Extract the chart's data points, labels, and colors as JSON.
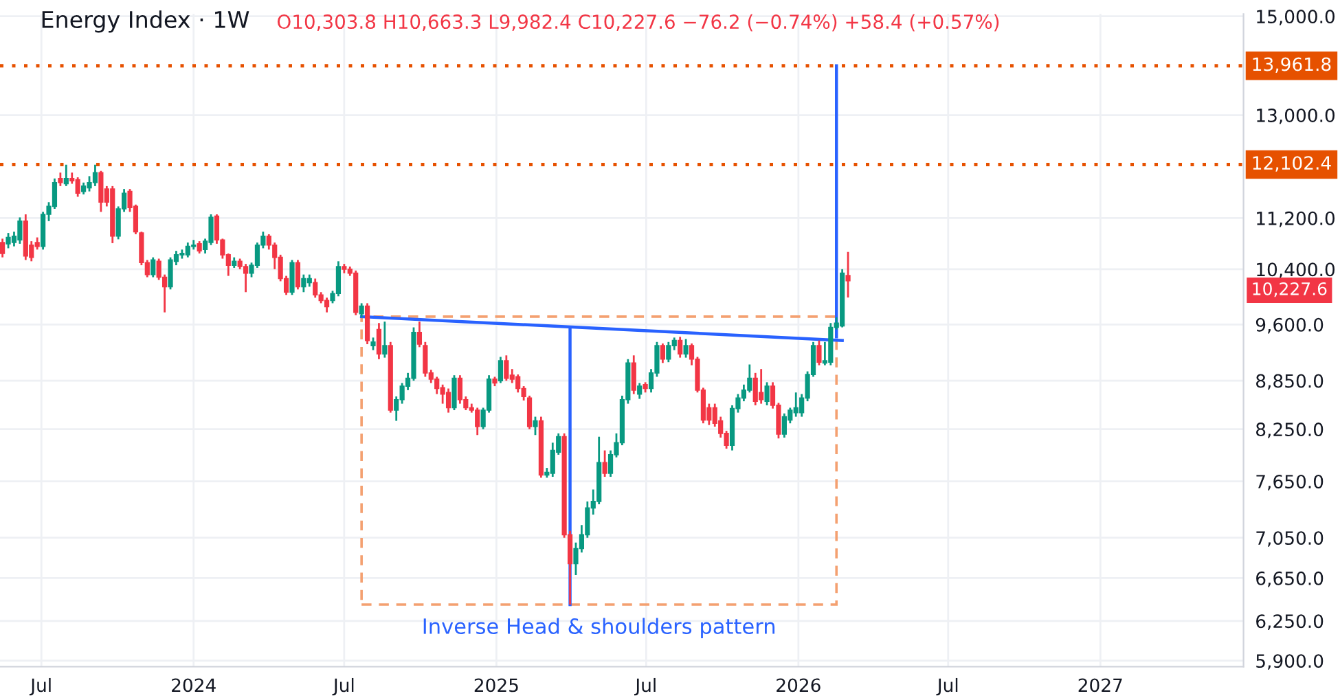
{
  "chart_data": {
    "type": "candlestick",
    "title": "Energy Index · 1W",
    "subtitle": "O10,303.8 H10,663.3 L9,982.4 C10,227.6 −76.2 (−0.74%) +58.4 (+0.57%)",
    "log": true,
    "grid": true,
    "xlim": [
      "2023-05-12",
      "2027-06-23"
    ],
    "xticks": [
      {
        "value": "2023-07-01",
        "label": "Jul"
      },
      {
        "value": "2024-01-01",
        "label": "2024"
      },
      {
        "value": "2024-07-01",
        "label": "Jul"
      },
      {
        "value": "2025-01-01",
        "label": "2025"
      },
      {
        "value": "2025-07-01",
        "label": "Jul"
      },
      {
        "value": "2026-01-01",
        "label": "2026"
      },
      {
        "value": "2026-07-01",
        "label": "Jul"
      },
      {
        "value": "2027-01-01",
        "label": "2027"
      }
    ],
    "ylim": [
      5850,
      15050
    ],
    "yticks": [
      {
        "value": 5900,
        "label": "5,900.0"
      },
      {
        "value": 6250,
        "label": "6,250.0"
      },
      {
        "value": 6650,
        "label": "6,650.0"
      },
      {
        "value": 7050,
        "label": "7,050.0"
      },
      {
        "value": 7650,
        "label": "7,650.0"
      },
      {
        "value": 8250,
        "label": "8,250.0"
      },
      {
        "value": 8850,
        "label": "8,850.0"
      },
      {
        "value": 9600,
        "label": "9,600.0"
      },
      {
        "value": 10400,
        "label": "10,400.0"
      },
      {
        "value": 11200,
        "label": "11,200.0"
      },
      {
        "value": 13000,
        "label": "13,000.0"
      },
      {
        "value": 15000,
        "label": "15,000.0"
      }
    ],
    "ref_lines": [
      {
        "axis": "y",
        "value": 13961.8,
        "label": "13,961.8",
        "color": "#e65100",
        "line_style": "dotted"
      },
      {
        "axis": "y",
        "value": 12102.4,
        "label": "12,102.4",
        "color": "#e65100",
        "line_style": "dotted"
      }
    ],
    "annotations": [
      "10,227.6",
      "Inverse Head & shoulders pattern"
    ],
    "series": [
      {
        "x": [
          "2023-05-15",
          "2023-05-22",
          "2023-05-29",
          "2023-06-05",
          "2023-06-12",
          "2023-06-19",
          "2023-06-26",
          "2023-07-03",
          "2023-07-10",
          "2023-07-17",
          "2023-07-24",
          "2023-07-31",
          "2023-08-07",
          "2023-08-14",
          "2023-08-21",
          "2023-08-28",
          "2023-09-04",
          "2023-09-11",
          "2023-09-18",
          "2023-09-25",
          "2023-10-02",
          "2023-10-09",
          "2023-10-16",
          "2023-10-23",
          "2023-10-30",
          "2023-11-06",
          "2023-11-13",
          "2023-11-20",
          "2023-11-27",
          "2023-12-04",
          "2023-12-11",
          "2023-12-18",
          "2023-12-25",
          "2024-01-01",
          "2024-01-08",
          "2024-01-15",
          "2024-01-22",
          "2024-01-29",
          "2024-02-05",
          "2024-02-12",
          "2024-02-19",
          "2024-02-26",
          "2024-03-04",
          "2024-03-11",
          "2024-03-18",
          "2024-03-25",
          "2024-04-01",
          "2024-04-08",
          "2024-04-15",
          "2024-04-22",
          "2024-04-29",
          "2024-05-06",
          "2024-05-13",
          "2024-05-20",
          "2024-05-27",
          "2024-06-03",
          "2024-06-10",
          "2024-06-17",
          "2024-06-24",
          "2024-07-01",
          "2024-07-08",
          "2024-07-15",
          "2024-07-22",
          "2024-07-29",
          "2024-08-05",
          "2024-08-12",
          "2024-08-19",
          "2024-08-26",
          "2024-09-02",
          "2024-09-09",
          "2024-09-16",
          "2024-09-23",
          "2024-09-30",
          "2024-10-07",
          "2024-10-14",
          "2024-10-21",
          "2024-10-28",
          "2024-11-04",
          "2024-11-11",
          "2024-11-18",
          "2024-11-25",
          "2024-12-02",
          "2024-12-09",
          "2024-12-16",
          "2024-12-23",
          "2024-12-30",
          "2025-01-06",
          "2025-01-13",
          "2025-01-20",
          "2025-01-27",
          "2025-02-03",
          "2025-02-10",
          "2025-02-17",
          "2025-02-24",
          "2025-03-03",
          "2025-03-10",
          "2025-03-17",
          "2025-03-24",
          "2025-03-31",
          "2025-04-07",
          "2025-04-14",
          "2025-04-21",
          "2025-04-28",
          "2025-05-05",
          "2025-05-12",
          "2025-05-19",
          "2025-05-26",
          "2025-06-02",
          "2025-06-09",
          "2025-06-16",
          "2025-06-23",
          "2025-06-30",
          "2025-07-07",
          "2025-07-14",
          "2025-07-21",
          "2025-07-28",
          "2025-08-04",
          "2025-08-11",
          "2025-08-18",
          "2025-08-25",
          "2025-09-01",
          "2025-09-08",
          "2025-09-15",
          "2025-09-22",
          "2025-09-29",
          "2025-10-06",
          "2025-10-13",
          "2025-10-20",
          "2025-10-27",
          "2025-11-03",
          "2025-11-10",
          "2025-11-17",
          "2025-11-24",
          "2025-12-01",
          "2025-12-08",
          "2025-12-15",
          "2025-12-22",
          "2025-12-29",
          "2026-01-05",
          "2026-01-12",
          "2026-01-19",
          "2026-01-26",
          "2026-02-02",
          "2026-02-09",
          "2026-02-16",
          "2026-02-23",
          "2026-03-02"
        ],
        "ohlc": [
          [
            10810,
            10870,
            10580,
            10640
          ],
          [
            10790,
            10960,
            10720,
            10890
          ],
          [
            10810,
            10980,
            10750,
            10910
          ],
          [
            10850,
            11210,
            10790,
            11150
          ],
          [
            11150,
            11260,
            10540,
            10600
          ],
          [
            10770,
            10830,
            10520,
            10580
          ],
          [
            10810,
            10890,
            10700,
            10750
          ],
          [
            10750,
            11300,
            10700,
            11260
          ],
          [
            11260,
            11460,
            11150,
            11390
          ],
          [
            11390,
            11860,
            11350,
            11790
          ],
          [
            11860,
            11960,
            11730,
            11790
          ],
          [
            11770,
            12100,
            11730,
            11860
          ],
          [
            11860,
            11960,
            11770,
            11820
          ],
          [
            11840,
            11880,
            11550,
            11610
          ],
          [
            11640,
            11790,
            11590,
            11730
          ],
          [
            11700,
            11900,
            11640,
            11790
          ],
          [
            11790,
            12100,
            11730,
            11960
          ],
          [
            11960,
            11990,
            11300,
            11460
          ],
          [
            11680,
            11730,
            11390,
            11460
          ],
          [
            11680,
            11730,
            10800,
            10910
          ],
          [
            10910,
            11390,
            10860,
            11350
          ],
          [
            11350,
            11680,
            11300,
            11610
          ],
          [
            11640,
            11680,
            11300,
            11370
          ],
          [
            11390,
            11420,
            10940,
            10980
          ],
          [
            10960,
            10980,
            10460,
            10500
          ],
          [
            10500,
            10540,
            10280,
            10320
          ],
          [
            10320,
            10580,
            10280,
            10540
          ],
          [
            10520,
            10560,
            10240,
            10280
          ],
          [
            10280,
            10320,
            9770,
            10140
          ],
          [
            10140,
            10580,
            10100,
            10540
          ],
          [
            10520,
            10680,
            10460,
            10620
          ],
          [
            10620,
            10700,
            10560,
            10640
          ],
          [
            10620,
            10810,
            10580,
            10750
          ],
          [
            10750,
            10850,
            10700,
            10770
          ],
          [
            10790,
            10830,
            10640,
            10680
          ],
          [
            10700,
            10870,
            10640,
            10830
          ],
          [
            10810,
            11260,
            10770,
            11210
          ],
          [
            11230,
            11260,
            10790,
            10850
          ],
          [
            10850,
            10870,
            10560,
            10620
          ],
          [
            10620,
            10640,
            10300,
            10460
          ],
          [
            10460,
            10580,
            10420,
            10520
          ],
          [
            10520,
            10560,
            10400,
            10440
          ],
          [
            10440,
            10480,
            10060,
            10340
          ],
          [
            10340,
            10500,
            10280,
            10460
          ],
          [
            10460,
            10810,
            10420,
            10770
          ],
          [
            10770,
            10980,
            10720,
            10910
          ],
          [
            10910,
            10940,
            10700,
            10770
          ],
          [
            10770,
            10810,
            10400,
            10580
          ],
          [
            10580,
            10620,
            10220,
            10260
          ],
          [
            10260,
            10300,
            10020,
            10060
          ],
          [
            10060,
            10540,
            10020,
            10500
          ],
          [
            10500,
            10540,
            10100,
            10140
          ],
          [
            10140,
            10320,
            10060,
            10260
          ],
          [
            10200,
            10320,
            10140,
            10260
          ],
          [
            10200,
            10260,
            9980,
            10020
          ],
          [
            10020,
            10060,
            9900,
            9940
          ],
          [
            9940,
            9980,
            9770,
            9850
          ],
          [
            9940,
            10080,
            9900,
            10040
          ],
          [
            10040,
            10520,
            10000,
            10440
          ],
          [
            10440,
            10480,
            10340,
            10400
          ],
          [
            10400,
            10440,
            10300,
            10340
          ],
          [
            10340,
            10380,
            9730,
            9770
          ],
          [
            9750,
            9900,
            9700,
            9860
          ],
          [
            9860,
            9900,
            9330,
            9380
          ],
          [
            9310,
            9420,
            9250,
            9360
          ],
          [
            9530,
            9620,
            9130,
            9200
          ],
          [
            9200,
            9640,
            9150,
            9310
          ],
          [
            9310,
            9360,
            8450,
            8480
          ],
          [
            8480,
            8650,
            8350,
            8610
          ],
          [
            8610,
            8820,
            8560,
            8780
          ],
          [
            8780,
            8950,
            8730,
            8880
          ],
          [
            8880,
            9560,
            8850,
            9490
          ],
          [
            9490,
            9640,
            9290,
            9330
          ],
          [
            9310,
            9360,
            8900,
            8950
          ],
          [
            8950,
            8990,
            8820,
            8870
          ],
          [
            8870,
            8900,
            8680,
            8750
          ],
          [
            8760,
            8800,
            8560,
            8680
          ],
          [
            8700,
            8750,
            8450,
            8510
          ],
          [
            8510,
            8920,
            8480,
            8880
          ],
          [
            8880,
            8920,
            8560,
            8610
          ],
          [
            8610,
            8650,
            8480,
            8510
          ],
          [
            8510,
            8560,
            8450,
            8480
          ],
          [
            8480,
            8510,
            8180,
            8280
          ],
          [
            8280,
            8510,
            8250,
            8480
          ],
          [
            8480,
            8920,
            8450,
            8870
          ],
          [
            8870,
            8900,
            8780,
            8820
          ],
          [
            8850,
            9160,
            8820,
            9110
          ],
          [
            9110,
            9180,
            8850,
            8880
          ],
          [
            8920,
            9000,
            8820,
            8870
          ],
          [
            8900,
            8930,
            8700,
            8750
          ],
          [
            8750,
            8780,
            8600,
            8650
          ],
          [
            8630,
            8660,
            8250,
            8280
          ],
          [
            8280,
            8400,
            8180,
            8350
          ],
          [
            8350,
            8400,
            7690,
            7720
          ],
          [
            7720,
            7800,
            7690,
            7750
          ],
          [
            7740,
            8090,
            7700,
            8000
          ],
          [
            7980,
            8200,
            7950,
            8160
          ],
          [
            8160,
            8200,
            7050,
            7080
          ],
          [
            7080,
            7120,
            6400,
            6790
          ],
          [
            6790,
            7000,
            6680,
            6940
          ],
          [
            6940,
            7180,
            6900,
            7080
          ],
          [
            7080,
            7430,
            7050,
            7360
          ],
          [
            7360,
            7560,
            7290,
            7430
          ],
          [
            7430,
            8160,
            7400,
            7860
          ],
          [
            7860,
            8000,
            7700,
            7740
          ],
          [
            7740,
            8000,
            7700,
            7950
          ],
          [
            7950,
            8200,
            7920,
            8090
          ],
          [
            8090,
            8660,
            8060,
            8610
          ],
          [
            8610,
            9130,
            8560,
            9080
          ],
          [
            9080,
            9180,
            8680,
            8730
          ],
          [
            8680,
            8820,
            8620,
            8780
          ],
          [
            8800,
            8830,
            8700,
            8750
          ],
          [
            8750,
            9000,
            8700,
            8950
          ],
          [
            8950,
            9360,
            8900,
            9310
          ],
          [
            9310,
            9340,
            9080,
            9130
          ],
          [
            9130,
            9360,
            9090,
            9310
          ],
          [
            9310,
            9420,
            9250,
            9380
          ],
          [
            9380,
            9430,
            9150,
            9200
          ],
          [
            9200,
            9400,
            9150,
            9310
          ],
          [
            9310,
            9340,
            9050,
            9130
          ],
          [
            9130,
            9160,
            8700,
            8730
          ],
          [
            8730,
            8760,
            8320,
            8360
          ],
          [
            8510,
            8560,
            8300,
            8360
          ],
          [
            8510,
            8560,
            8280,
            8320
          ],
          [
            8350,
            8400,
            8150,
            8200
          ],
          [
            8200,
            8230,
            8020,
            8060
          ],
          [
            8060,
            8540,
            8000,
            8500
          ],
          [
            8500,
            8680,
            8450,
            8630
          ],
          [
            8630,
            8800,
            8590,
            8730
          ],
          [
            8730,
            9060,
            8700,
            8880
          ],
          [
            8880,
            8950,
            8540,
            8590
          ],
          [
            8700,
            9000,
            8560,
            8610
          ],
          [
            8590,
            8830,
            8540,
            8780
          ],
          [
            8780,
            8830,
            8500,
            8540
          ],
          [
            8540,
            8570,
            8140,
            8190
          ],
          [
            8190,
            8440,
            8150,
            8400
          ],
          [
            8360,
            8510,
            8320,
            8480
          ],
          [
            8450,
            8700,
            8400,
            8510
          ],
          [
            8450,
            8680,
            8400,
            8630
          ],
          [
            8630,
            8970,
            8590,
            8930
          ],
          [
            8930,
            9360,
            8900,
            9310
          ],
          [
            9310,
            9380,
            9050,
            9090
          ],
          [
            9080,
            9360,
            9050,
            9110
          ],
          [
            9090,
            9620,
            9050,
            9560
          ],
          [
            9560,
            9700,
            9530,
            9620
          ],
          [
            9580,
            10400,
            9560,
            10340
          ],
          [
            10303.8,
            10663.3,
            9982.4,
            10227.6
          ]
        ]
      },
      {
        "type": "line",
        "color": "#2962ff",
        "x": [
          "2024-07-22",
          "2026-02-23"
        ],
        "values": [
          9710,
          9380
        ]
      },
      {
        "type": "line",
        "color": "#2962ff",
        "x": [
          "2025-03-31",
          "2025-03-31"
        ],
        "values": [
          9540,
          6400
        ]
      },
      {
        "type": "line",
        "color": "#2962ff",
        "x": [
          "2026-02-16",
          "2026-02-16"
        ],
        "values": [
          9430,
          13961.8
        ]
      }
    ]
  }
}
